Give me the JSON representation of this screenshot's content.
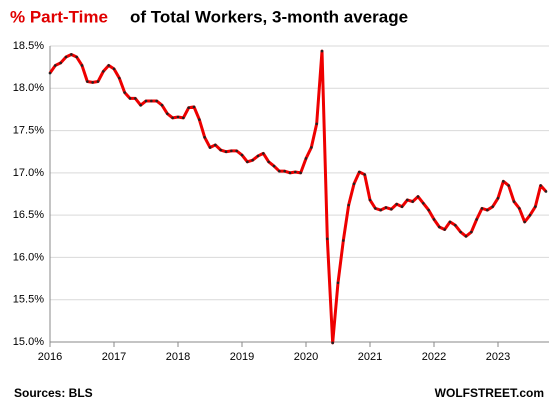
{
  "chart_data": {
    "type": "line",
    "title_highlight": "% Part-Time",
    "title": "of Total Workers, 3-month average",
    "title_highlight_color": "#e00000",
    "source": "Sources: BLS",
    "brand": "WOLFSTREET.com",
    "categories": [
      "2016",
      null,
      null,
      null,
      null,
      null,
      null,
      null,
      null,
      null,
      null,
      null,
      "2017",
      null,
      null,
      null,
      null,
      null,
      null,
      null,
      null,
      null,
      null,
      null,
      "2018",
      null,
      null,
      null,
      null,
      null,
      null,
      null,
      null,
      null,
      null,
      null,
      "2019",
      null,
      null,
      null,
      null,
      null,
      null,
      null,
      null,
      null,
      null,
      null,
      "2020",
      null,
      null,
      null,
      null,
      null,
      null,
      null,
      null,
      null,
      null,
      null,
      "2021",
      null,
      null,
      null,
      null,
      null,
      null,
      null,
      null,
      null,
      null,
      null,
      "2022",
      null,
      null,
      null,
      null,
      null,
      null,
      null,
      null,
      null,
      null,
      null,
      "2023",
      null,
      null,
      null,
      null,
      null,
      null,
      null,
      null,
      null
    ],
    "values": [
      18.18,
      18.27,
      18.3,
      18.37,
      18.4,
      18.37,
      18.27,
      18.08,
      18.07,
      18.08,
      18.2,
      18.27,
      18.23,
      18.12,
      17.95,
      17.88,
      17.88,
      17.8,
      17.85,
      17.85,
      17.85,
      17.8,
      17.7,
      17.65,
      17.66,
      17.65,
      17.77,
      17.78,
      17.63,
      17.42,
      17.3,
      17.33,
      17.27,
      17.25,
      17.26,
      17.26,
      17.21,
      17.13,
      17.15,
      17.2,
      17.23,
      17.13,
      17.08,
      17.02,
      17.02,
      17.0,
      17.01,
      17.0,
      17.17,
      17.3,
      17.58,
      18.44,
      16.22,
      14.99,
      15.7,
      16.2,
      16.62,
      16.87,
      17.01,
      16.98,
      16.68,
      16.58,
      16.56,
      16.59,
      16.57,
      16.63,
      16.6,
      16.68,
      16.66,
      16.72,
      16.64,
      16.56,
      16.45,
      16.36,
      16.33,
      16.42,
      16.38,
      16.3,
      16.25,
      16.3,
      16.45,
      16.58,
      16.56,
      16.6,
      16.7,
      16.9,
      16.85,
      16.66,
      16.58,
      16.42,
      16.5,
      16.6,
      16.85,
      16.78
    ],
    "color": "#ee0000",
    "marker_color": "#222222",
    "ylim": [
      15.0,
      18.5
    ],
    "yticks": [
      {
        "value": 15.0,
        "label": "15.0%"
      },
      {
        "value": 15.5,
        "label": "15.5%"
      },
      {
        "value": 16.0,
        "label": "16.0%"
      },
      {
        "value": 16.5,
        "label": "16.5%"
      },
      {
        "value": 17.0,
        "label": "17.0%"
      },
      {
        "value": 17.5,
        "label": "17.5%"
      },
      {
        "value": 18.0,
        "label": "18.0%"
      },
      {
        "value": 18.5,
        "label": "18.5%"
      }
    ],
    "grid": true
  }
}
